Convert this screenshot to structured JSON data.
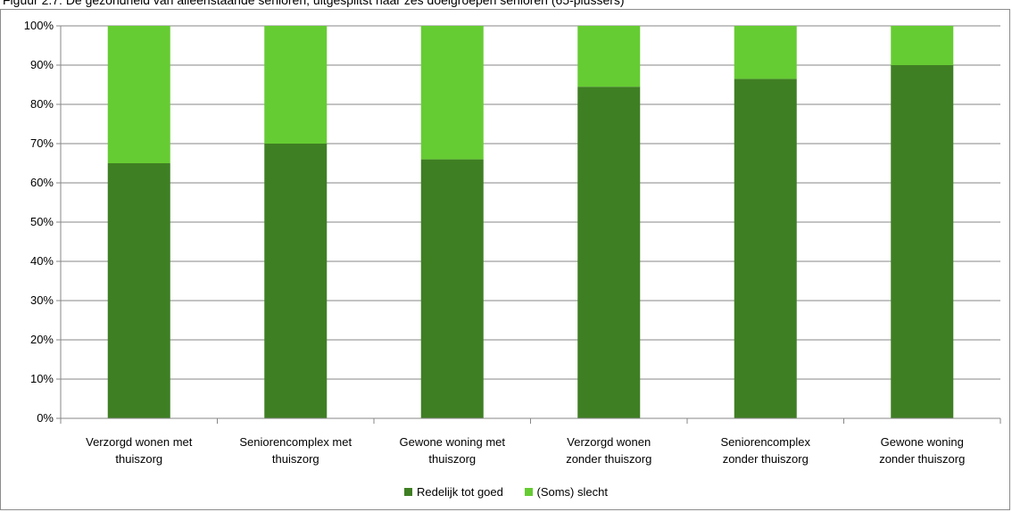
{
  "caption": "Figuur 2.7: De gezondheid van alleenstaande senioren, uitgesplitst naar zes doelgroepen senioren (65-plussers)",
  "colors": {
    "series_1": "#3f7f23",
    "series_2": "#66cc33",
    "gridline": "#878787",
    "axis": "#878787"
  },
  "chart_data": {
    "type": "bar",
    "stacked": true,
    "categories": [
      [
        "Verzorgd wonen met",
        "thuiszorg"
      ],
      [
        "Seniorencomplex met",
        "thuiszorg"
      ],
      [
        "Gewone woning met",
        "thuiszorg"
      ],
      [
        "Verzorgd wonen",
        "zonder thuiszorg"
      ],
      [
        "Seniorencomplex",
        "zonder thuiszorg"
      ],
      [
        "Gewone woning",
        "zonder thuiszorg"
      ]
    ],
    "series": [
      {
        "name": "Redelijk tot goed",
        "values": [
          65,
          70,
          66,
          84.5,
          86.5,
          90
        ]
      },
      {
        "name": "(Soms) slecht",
        "values": [
          35,
          30,
          34,
          15.5,
          13.5,
          10
        ]
      }
    ],
    "ylim": [
      0,
      100
    ],
    "yticks": [
      "0%",
      "10%",
      "20%",
      "30%",
      "40%",
      "50%",
      "60%",
      "70%",
      "80%",
      "90%",
      "100%"
    ],
    "grid": true,
    "legend_position": "bottom"
  }
}
